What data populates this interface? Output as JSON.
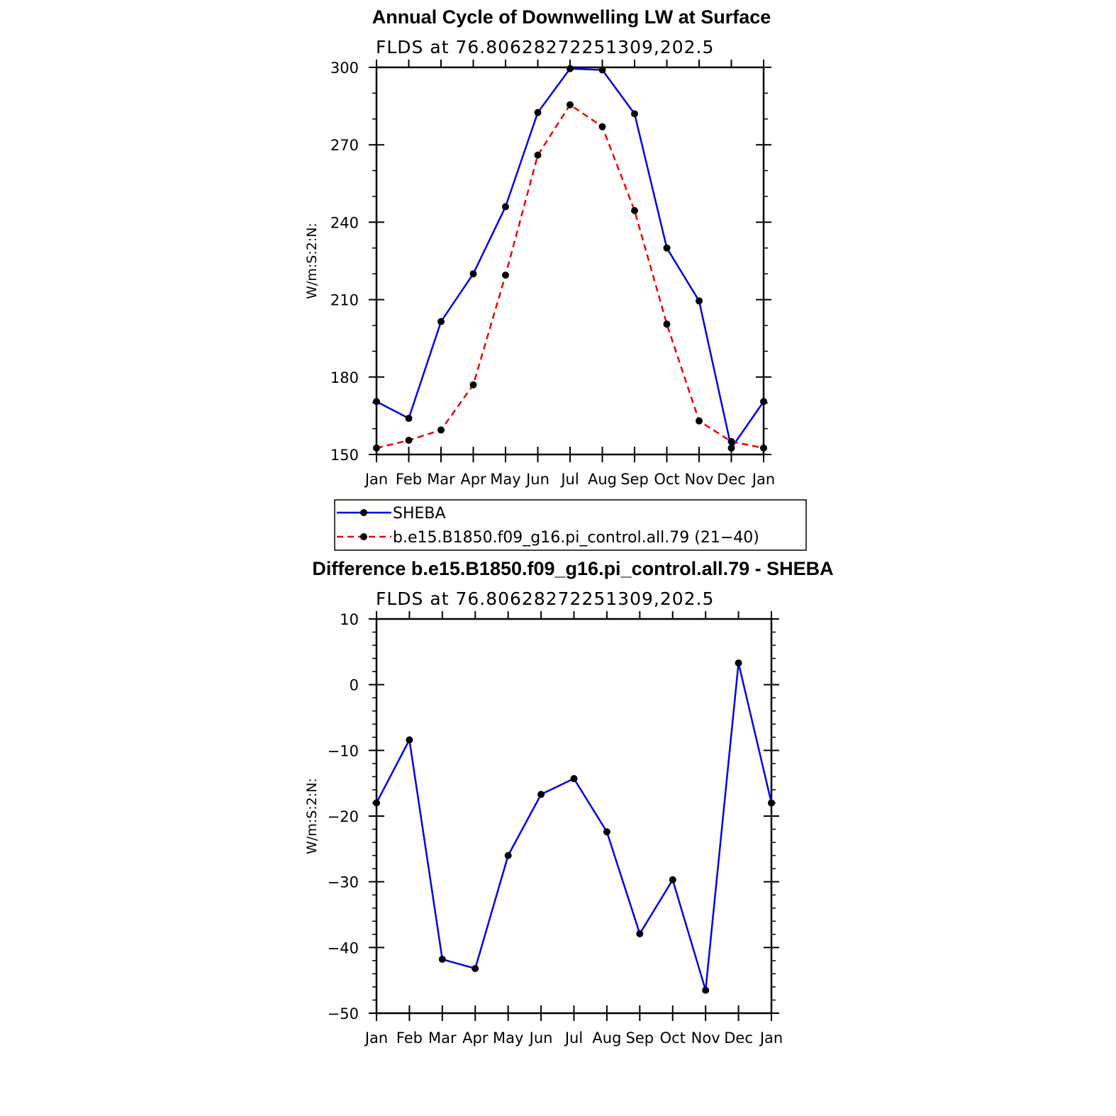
{
  "chart_data": [
    {
      "type": "line",
      "title": "Annual Cycle of Downwelling LW at Surface",
      "subtitle": "FLDS at 76.80628272251309,202.5",
      "ylabel": "W/m:S:2:N:",
      "ylim": [
        150,
        300
      ],
      "yticks": [
        "150",
        "180",
        "210",
        "240",
        "270",
        "300"
      ],
      "categories": [
        "Jan",
        "Feb",
        "Mar",
        "Apr",
        "May",
        "Jun",
        "Jul",
        "Aug",
        "Sep",
        "Oct",
        "Nov",
        "Dec",
        "Jan"
      ],
      "series": [
        {
          "name": "SHEBA",
          "color": "#0000ee",
          "dash": "solid",
          "values": [
            170.5,
            164,
            201.5,
            220,
            246,
            282.5,
            299.5,
            299,
            282,
            230,
            209.5,
            152.5,
            170.5
          ]
        },
        {
          "name": "b.e15.B1850.f09_g16.pi_control.all.79 (21−40)",
          "color": "#ee0000",
          "dash": "dashed",
          "values": [
            152.5,
            155.5,
            159.5,
            177,
            219.5,
            266,
            285.5,
            277,
            244.5,
            200.5,
            163,
            155,
            152.5
          ]
        }
      ],
      "legend": "bottom"
    },
    {
      "type": "line",
      "title": "Difference b.e15.B1850.f09_g16.pi_control.all.79 - SHEBA",
      "subtitle": "FLDS at 76.80628272251309,202.5",
      "ylabel": "W/m:S:2:N:",
      "ylim": [
        -50,
        10
      ],
      "yticks": [
        "−50",
        "−40",
        "−30",
        "−20",
        "−10",
        "0",
        "10"
      ],
      "categories": [
        "Jan",
        "Feb",
        "Mar",
        "Apr",
        "May",
        "Jun",
        "Jul",
        "Aug",
        "Sep",
        "Oct",
        "Nov",
        "Dec",
        "Jan"
      ],
      "series": [
        {
          "color": "#0000ee",
          "dash": "solid",
          "values": [
            -18,
            -8.4,
            -41.8,
            -43.2,
            -26,
            -16.7,
            -14.3,
            -22.4,
            -37.9,
            -29.7,
            -46.5,
            3.3,
            -18
          ]
        }
      ]
    }
  ]
}
